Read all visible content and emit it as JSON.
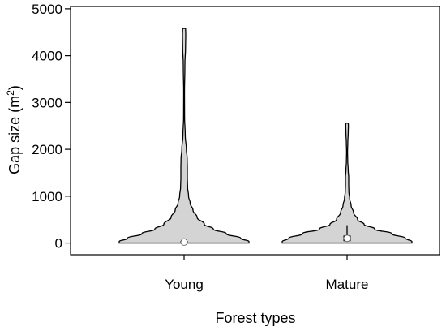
{
  "chart_data": {
    "type": "violin",
    "title": "",
    "xlabel": "Forest types",
    "ylabel_main": "Gap size (m",
    "ylabel_sup": "2",
    "ylabel_close": ")",
    "ylim": [
      -250,
      5050
    ],
    "yticks": [
      0,
      1000,
      2000,
      3000,
      4000,
      5000
    ],
    "ytick_labels": [
      "0",
      "1000",
      "2000",
      "3000",
      "4000",
      "5000"
    ],
    "grid": false,
    "legend": "none",
    "colors": {
      "violin_fill": "#d4d4d4",
      "stroke": "#000000",
      "median_marker": "#ffffff",
      "box": "#000000"
    },
    "categories": [
      "Young",
      "Mature"
    ],
    "series": [
      {
        "category": "Young",
        "min": 0,
        "max": 4580,
        "q1": 0,
        "median": 20,
        "q3": 45,
        "upper_whisker": 100,
        "profile": [
          [
            0,
            0.8
          ],
          [
            30,
            0.8
          ],
          [
            100,
            0.7
          ],
          [
            200,
            0.52
          ],
          [
            300,
            0.36
          ],
          [
            400,
            0.25
          ],
          [
            550,
            0.16
          ],
          [
            700,
            0.11
          ],
          [
            850,
            0.075
          ],
          [
            1000,
            0.055
          ],
          [
            1200,
            0.043
          ],
          [
            1400,
            0.04
          ],
          [
            1600,
            0.04
          ],
          [
            1800,
            0.038
          ],
          [
            2000,
            0.028
          ],
          [
            2300,
            0.014
          ],
          [
            2700,
            0.006
          ],
          [
            3200,
            0.005
          ],
          [
            3800,
            0.01
          ],
          [
            4200,
            0.018
          ],
          [
            4450,
            0.02
          ],
          [
            4580,
            0.018
          ]
        ]
      },
      {
        "category": "Mature",
        "min": 0,
        "max": 2560,
        "q1": 40,
        "median": 100,
        "q3": 160,
        "upper_whisker": 380,
        "profile": [
          [
            0,
            0.8
          ],
          [
            30,
            0.8
          ],
          [
            100,
            0.72
          ],
          [
            200,
            0.55
          ],
          [
            300,
            0.34
          ],
          [
            400,
            0.21
          ],
          [
            500,
            0.13
          ],
          [
            650,
            0.08
          ],
          [
            800,
            0.05
          ],
          [
            950,
            0.032
          ],
          [
            1100,
            0.022
          ],
          [
            1250,
            0.02
          ],
          [
            1400,
            0.02
          ],
          [
            1550,
            0.014
          ],
          [
            1750,
            0.008
          ],
          [
            1950,
            0.006
          ],
          [
            2150,
            0.009
          ],
          [
            2350,
            0.014
          ],
          [
            2500,
            0.016
          ],
          [
            2560,
            0.015
          ]
        ]
      }
    ]
  }
}
